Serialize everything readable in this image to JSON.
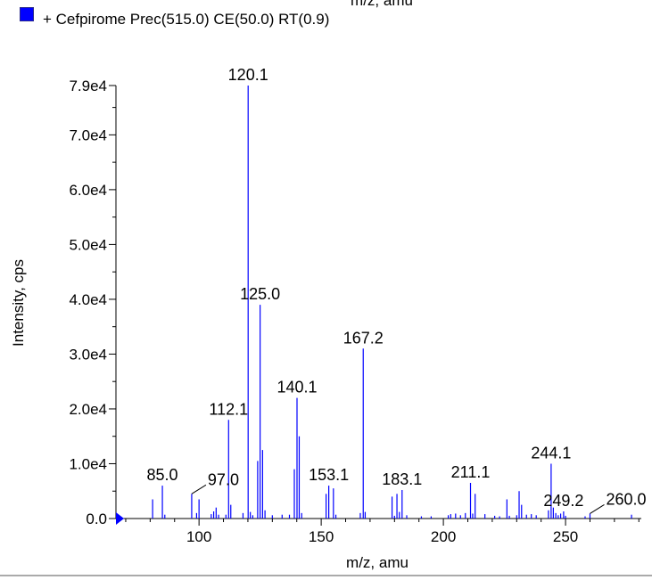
{
  "top_cut_label": "m/z, amu",
  "legend": {
    "swatch_color": "#0000ff",
    "label": "+ Cefpirome Prec(515.0) CE(50.0) RT(0.9)"
  },
  "chart_data": {
    "type": "bar",
    "xlabel": "m/z, amu",
    "ylabel": "Intensity, cps",
    "xlim": [
      66,
      281
    ],
    "ylim": [
      0,
      80000
    ],
    "x_ticks": [
      100,
      150,
      200,
      250
    ],
    "y_ticks": [
      {
        "value": 0,
        "label": "0.0"
      },
      {
        "value": 10000,
        "label": "1.0e4"
      },
      {
        "value": 20000,
        "label": "2.0e4"
      },
      {
        "value": 30000,
        "label": "3.0e4"
      },
      {
        "value": 40000,
        "label": "4.0e4"
      },
      {
        "value": 50000,
        "label": "5.0e4"
      },
      {
        "value": 60000,
        "label": "6.0e4"
      },
      {
        "value": 70000,
        "label": "7.0e4"
      },
      {
        "value": 79000,
        "label": "7.9e4"
      }
    ],
    "color": "#0000ff",
    "peaks": [
      {
        "x": 81.0,
        "y": 3500
      },
      {
        "x": 85.0,
        "y": 6000
      },
      {
        "x": 86.0,
        "y": 700
      },
      {
        "x": 97.0,
        "y": 4500
      },
      {
        "x": 99.0,
        "y": 1000
      },
      {
        "x": 100.0,
        "y": 3500
      },
      {
        "x": 105.0,
        "y": 800
      },
      {
        "x": 106.0,
        "y": 1300
      },
      {
        "x": 107.0,
        "y": 2000
      },
      {
        "x": 108.0,
        "y": 700
      },
      {
        "x": 111.0,
        "y": 700
      },
      {
        "x": 112.1,
        "y": 18000
      },
      {
        "x": 113.0,
        "y": 2500
      },
      {
        "x": 118.0,
        "y": 1000
      },
      {
        "x": 120.1,
        "y": 79000
      },
      {
        "x": 121.0,
        "y": 1200
      },
      {
        "x": 122.0,
        "y": 600
      },
      {
        "x": 124.0,
        "y": 10500
      },
      {
        "x": 125.0,
        "y": 39000
      },
      {
        "x": 126.0,
        "y": 12500
      },
      {
        "x": 127.0,
        "y": 1500
      },
      {
        "x": 130.0,
        "y": 600
      },
      {
        "x": 134.0,
        "y": 700
      },
      {
        "x": 137.0,
        "y": 700
      },
      {
        "x": 139.0,
        "y": 9000
      },
      {
        "x": 140.1,
        "y": 22000
      },
      {
        "x": 141.0,
        "y": 15000
      },
      {
        "x": 142.0,
        "y": 1000
      },
      {
        "x": 152.0,
        "y": 4500
      },
      {
        "x": 153.1,
        "y": 6000
      },
      {
        "x": 155.0,
        "y": 5500
      },
      {
        "x": 156.0,
        "y": 700
      },
      {
        "x": 166.0,
        "y": 1000
      },
      {
        "x": 167.2,
        "y": 31000
      },
      {
        "x": 168.0,
        "y": 1200
      },
      {
        "x": 179.0,
        "y": 4000
      },
      {
        "x": 180.0,
        "y": 500
      },
      {
        "x": 181.0,
        "y": 4500
      },
      {
        "x": 182.0,
        "y": 1200
      },
      {
        "x": 183.1,
        "y": 5200
      },
      {
        "x": 185.0,
        "y": 600
      },
      {
        "x": 191.0,
        "y": 400
      },
      {
        "x": 195.0,
        "y": 400
      },
      {
        "x": 202.0,
        "y": 600
      },
      {
        "x": 203.0,
        "y": 800
      },
      {
        "x": 205.0,
        "y": 900
      },
      {
        "x": 207.0,
        "y": 600
      },
      {
        "x": 209.0,
        "y": 1000
      },
      {
        "x": 211.1,
        "y": 6500
      },
      {
        "x": 212.0,
        "y": 900
      },
      {
        "x": 213.0,
        "y": 4500
      },
      {
        "x": 217.0,
        "y": 800
      },
      {
        "x": 221.0,
        "y": 500
      },
      {
        "x": 223.0,
        "y": 400
      },
      {
        "x": 226.0,
        "y": 3500
      },
      {
        "x": 227.0,
        "y": 500
      },
      {
        "x": 230.0,
        "y": 600
      },
      {
        "x": 231.0,
        "y": 5000
      },
      {
        "x": 232.0,
        "y": 2500
      },
      {
        "x": 234.0,
        "y": 700
      },
      {
        "x": 236.0,
        "y": 800
      },
      {
        "x": 238.0,
        "y": 600
      },
      {
        "x": 243.0,
        "y": 1500
      },
      {
        "x": 244.1,
        "y": 10000
      },
      {
        "x": 245.0,
        "y": 2000
      },
      {
        "x": 246.0,
        "y": 1000
      },
      {
        "x": 247.0,
        "y": 600
      },
      {
        "x": 248.0,
        "y": 900
      },
      {
        "x": 249.2,
        "y": 1300
      },
      {
        "x": 250.0,
        "y": 500
      },
      {
        "x": 258.0,
        "y": 400
      },
      {
        "x": 260.0,
        "y": 900
      },
      {
        "x": 277.0,
        "y": 700
      }
    ],
    "annotations": [
      {
        "label": "85.0",
        "x": 85.0,
        "y": 6000
      },
      {
        "label": "97.0",
        "x": 97.0,
        "y": 4500,
        "leader": true
      },
      {
        "label": "112.1",
        "x": 112.1,
        "y": 18000
      },
      {
        "label": "120.1",
        "x": 120.1,
        "y": 79000
      },
      {
        "label": "125.0",
        "x": 125.0,
        "y": 39000
      },
      {
        "label": "140.1",
        "x": 140.1,
        "y": 22000
      },
      {
        "label": "153.1",
        "x": 153.1,
        "y": 6000
      },
      {
        "label": "167.2",
        "x": 167.2,
        "y": 31000
      },
      {
        "label": "183.1",
        "x": 183.1,
        "y": 5200
      },
      {
        "label": "211.1",
        "x": 211.1,
        "y": 6500
      },
      {
        "label": "244.1",
        "x": 244.1,
        "y": 10000
      },
      {
        "label": "249.2",
        "x": 249.2,
        "y": 1300
      },
      {
        "label": "260.0",
        "x": 260.0,
        "y": 900,
        "leader": true
      }
    ]
  }
}
